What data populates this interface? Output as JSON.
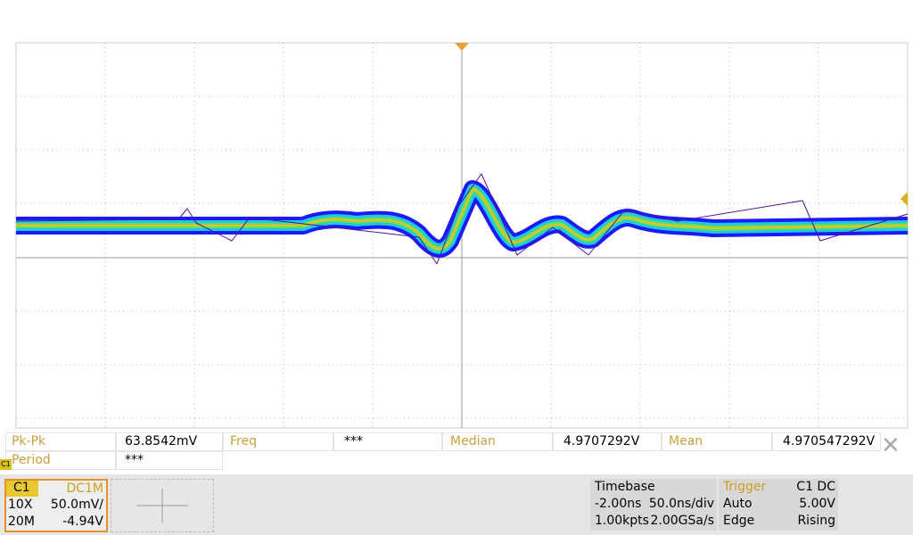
{
  "measurements": {
    "row1": [
      {
        "label": "Pk-Pk",
        "value": "63.8542mV"
      },
      {
        "label": "Freq",
        "value": "***"
      },
      {
        "label": "Median",
        "value": "4.9707292V"
      },
      {
        "label": "Mean",
        "value": "4.970547292V"
      }
    ],
    "row2": [
      {
        "label": "Period",
        "value": "***"
      }
    ]
  },
  "channel_marker": "C1",
  "channel": {
    "name": "C1",
    "coupling": "DC1M",
    "probe": "10X",
    "scale": "50.0mV/",
    "bandwidth": "20M",
    "offset": "-4.94V"
  },
  "timebase": {
    "title": "Timebase",
    "delay": "-2.00ns",
    "scale": "50.0ns/div",
    "points": "1.00kpts",
    "rate": "2.00GSa/s"
  },
  "trigger": {
    "title": "Trigger",
    "source": "C1 DC",
    "mode": "Auto",
    "level": "5.00V",
    "type": "Edge",
    "slope": "Rising"
  }
}
